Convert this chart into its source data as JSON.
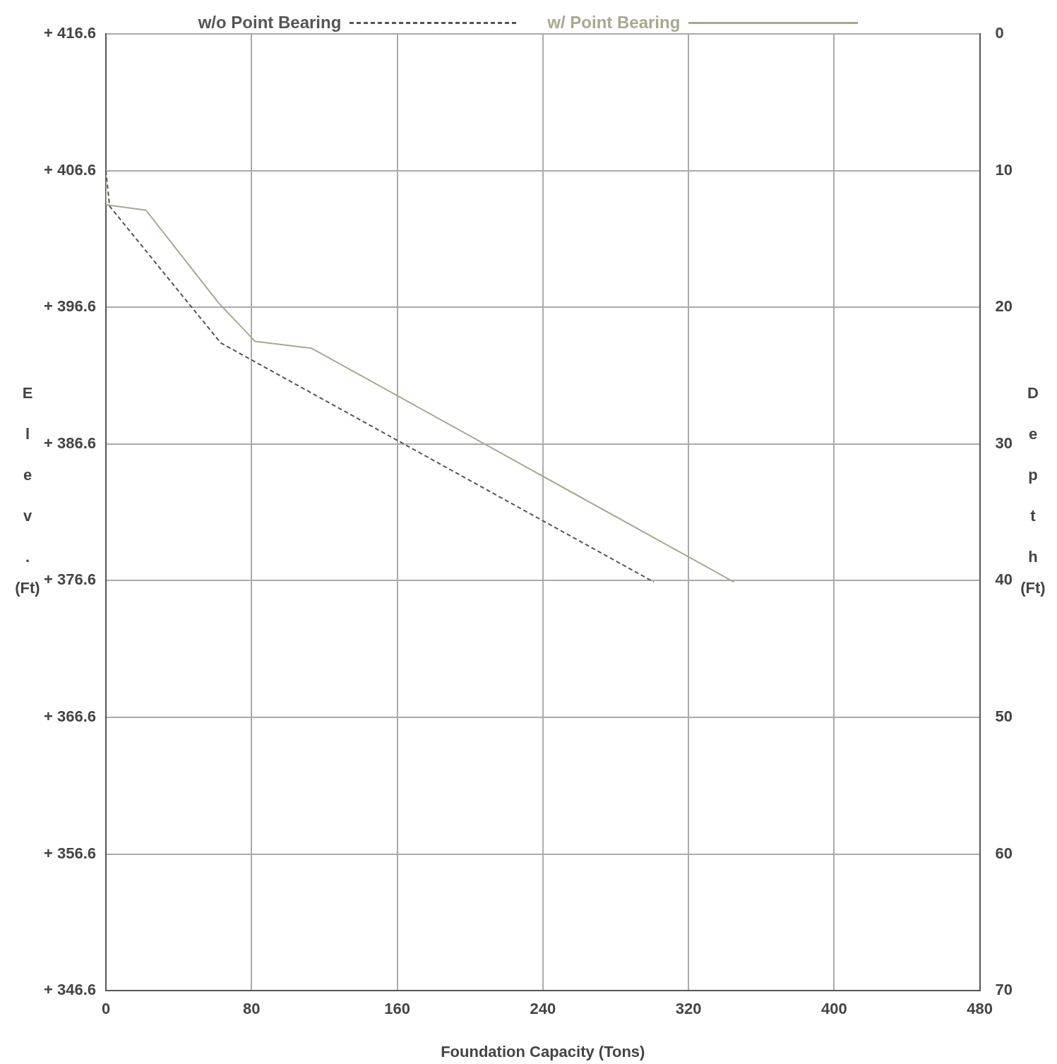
{
  "chart_data": {
    "type": "line",
    "xlabel": "Foundation Capacity (Tons)",
    "ylabel": "Elev. (Ft)",
    "y2label": "Depth (Ft)",
    "xlim": [
      0,
      480
    ],
    "xticks": [
      0,
      80,
      160,
      240,
      320,
      400,
      480
    ],
    "ylim": [
      346.6,
      416.6
    ],
    "yticks": [
      {
        "value": 416.6,
        "label": "+ 416.6"
      },
      {
        "value": 406.6,
        "label": "+ 406.6"
      },
      {
        "value": 396.6,
        "label": "+ 396.6"
      },
      {
        "value": 386.6,
        "label": "+ 386.6"
      },
      {
        "value": 376.6,
        "label": "+ 376.6"
      },
      {
        "value": 366.6,
        "label": "+ 366.6"
      },
      {
        "value": 356.6,
        "label": "+ 356.6"
      },
      {
        "value": 346.6,
        "label": "+ 346.6"
      }
    ],
    "y2lim": [
      70,
      0
    ],
    "y2ticks": [
      0,
      10,
      20,
      30,
      40,
      50,
      60,
      70
    ],
    "grid": true,
    "legend": "top",
    "marker": "none",
    "series": [
      {
        "name": "w/o Point Bearing",
        "color": "#555555",
        "line_style": "dashed",
        "axis": "y2",
        "x": [
          0,
          2,
          63,
          301
        ],
        "values": [
          10,
          12.6,
          22.6,
          40.1
        ]
      },
      {
        "name": "w/ Point Bearing",
        "color": "#a8a890",
        "line_style": "solid",
        "axis": "y2",
        "x": [
          0,
          0,
          22,
          62,
          82,
          113,
          345
        ],
        "values": [
          10,
          12.5,
          12.9,
          19.7,
          22.5,
          23,
          40.1
        ]
      }
    ]
  }
}
